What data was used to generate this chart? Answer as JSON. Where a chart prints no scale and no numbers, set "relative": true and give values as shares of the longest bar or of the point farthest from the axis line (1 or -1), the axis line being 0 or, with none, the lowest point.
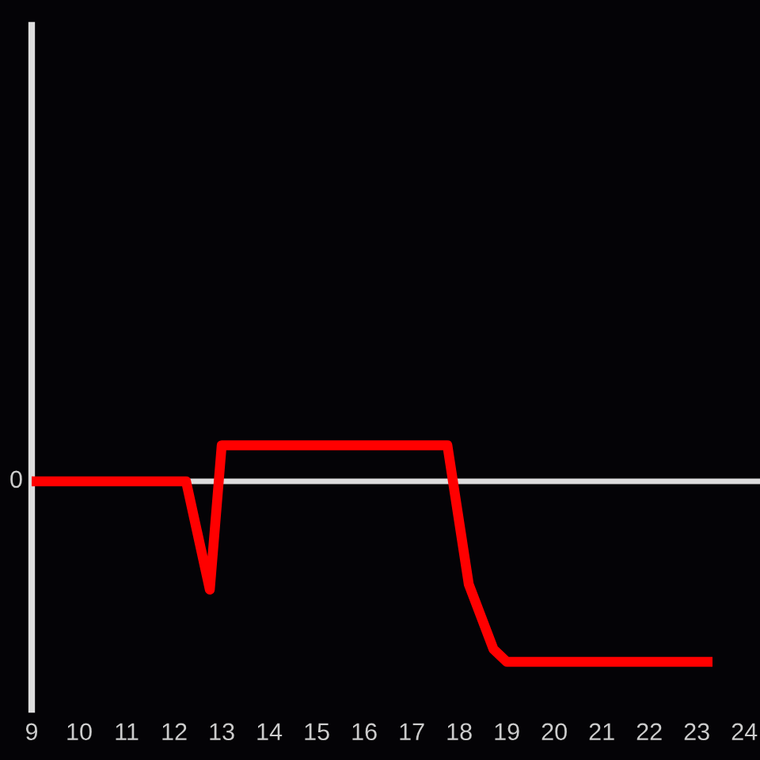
{
  "chart_data": {
    "type": "line",
    "relative": true,
    "x": [
      9,
      12.25,
      12.75,
      13,
      17.75,
      18.2,
      18.72,
      19,
      23.33
    ],
    "series": [
      {
        "color": "#ff0000",
        "values": [
          0,
          0,
          -0.6,
          0.2,
          0.2,
          -0.57,
          -0.93,
          -1,
          -1
        ]
      }
    ],
    "xlim": [
      9,
      24.33
    ],
    "xticks": [
      9,
      10,
      11,
      12,
      13,
      14,
      15,
      16,
      17,
      18,
      19,
      20,
      21,
      22,
      23,
      24
    ],
    "ref_lines": [
      {
        "axis": "y",
        "value": 0,
        "label": "0",
        "color": "#dddddd"
      }
    ],
    "line_style": "solid",
    "marker": "none"
  }
}
